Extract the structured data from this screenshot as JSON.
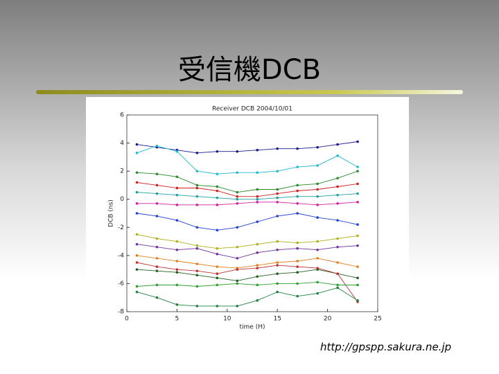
{
  "title": "受信機DCB",
  "footer": "http://gpspp.sakura.ne.jp",
  "chart_data": {
    "type": "line",
    "title": "Receiver DCB   2004/10/01",
    "xlabel": "time (H)",
    "ylabel": "DCB (ns)",
    "x": [
      1,
      3,
      5,
      7,
      9,
      11,
      13,
      15,
      17,
      19,
      21,
      23
    ],
    "xlim": [
      0,
      25
    ],
    "xticks": [
      0,
      5,
      10,
      15,
      20,
      25
    ],
    "ylim": [
      -8,
      6
    ],
    "yticks": [
      6,
      4,
      2,
      0,
      -2,
      -4,
      -6,
      -8
    ],
    "series": [
      {
        "color": "#1a1a8c",
        "values": [
          3.9,
          3.7,
          3.5,
          3.3,
          3.4,
          3.4,
          3.5,
          3.6,
          3.6,
          3.7,
          3.9,
          4.1
        ]
      },
      {
        "color": "#22b8d0",
        "values": [
          3.3,
          3.8,
          3.4,
          2.0,
          1.8,
          1.9,
          1.9,
          2.0,
          2.3,
          2.4,
          3.1,
          2.3
        ]
      },
      {
        "color": "#2a8a2a",
        "values": [
          1.9,
          1.8,
          1.6,
          1.0,
          0.9,
          0.5,
          0.7,
          0.7,
          1.0,
          1.1,
          1.5,
          2.0
        ]
      },
      {
        "color": "#d02020",
        "values": [
          1.2,
          1.0,
          0.8,
          0.8,
          0.6,
          0.2,
          0.2,
          0.4,
          0.6,
          0.7,
          0.9,
          1.1
        ]
      },
      {
        "color": "#20a0a0",
        "values": [
          0.5,
          0.4,
          0.3,
          0.2,
          0.1,
          0.0,
          0.0,
          0.1,
          0.2,
          0.2,
          0.3,
          0.4
        ]
      },
      {
        "color": "#d020a0",
        "values": [
          -0.3,
          -0.3,
          -0.4,
          -0.4,
          -0.4,
          -0.3,
          -0.2,
          -0.2,
          -0.3,
          -0.4,
          -0.3,
          -0.2
        ]
      },
      {
        "color": "#2040d0",
        "values": [
          -1.0,
          -1.2,
          -1.5,
          -2.0,
          -2.2,
          -2.0,
          -1.6,
          -1.2,
          -1.0,
          -1.3,
          -1.5,
          -1.8
        ]
      },
      {
        "color": "#b0b020",
        "values": [
          -2.5,
          -2.8,
          -3.0,
          -3.3,
          -3.5,
          -3.4,
          -3.2,
          -3.0,
          -3.1,
          -3.0,
          -2.8,
          -2.6
        ]
      },
      {
        "color": "#7030a0",
        "values": [
          -3.2,
          -3.4,
          -3.6,
          -3.5,
          -3.9,
          -4.2,
          -3.8,
          -3.6,
          -3.5,
          -3.6,
          -3.4,
          -3.3
        ]
      },
      {
        "color": "#e08020",
        "values": [
          -4.0,
          -4.2,
          -4.4,
          -4.6,
          -4.8,
          -4.9,
          -4.7,
          -4.5,
          -4.4,
          -4.2,
          -4.5,
          -4.8
        ]
      },
      {
        "color": "#206020",
        "values": [
          -5.0,
          -5.1,
          -5.2,
          -5.4,
          -5.6,
          -5.8,
          -5.5,
          -5.3,
          -5.2,
          -5.0,
          -5.3,
          -5.6
        ]
      },
      {
        "color": "#c03030",
        "values": [
          -4.5,
          -4.8,
          -5.0,
          -5.1,
          -5.3,
          -5.0,
          -4.9,
          -4.7,
          -4.8,
          -4.9,
          -5.3,
          -7.3
        ]
      },
      {
        "color": "#30a030",
        "values": [
          -6.2,
          -6.1,
          -6.1,
          -6.2,
          -6.1,
          -6.0,
          -6.1,
          -6.0,
          -6.0,
          -5.9,
          -6.1,
          -6.1
        ]
      },
      {
        "color": "#208040",
        "values": [
          -6.6,
          -7.0,
          -7.5,
          -7.6,
          -7.6,
          -7.6,
          -7.2,
          -6.6,
          -6.9,
          -6.7,
          -6.3,
          -7.2
        ]
      }
    ]
  }
}
